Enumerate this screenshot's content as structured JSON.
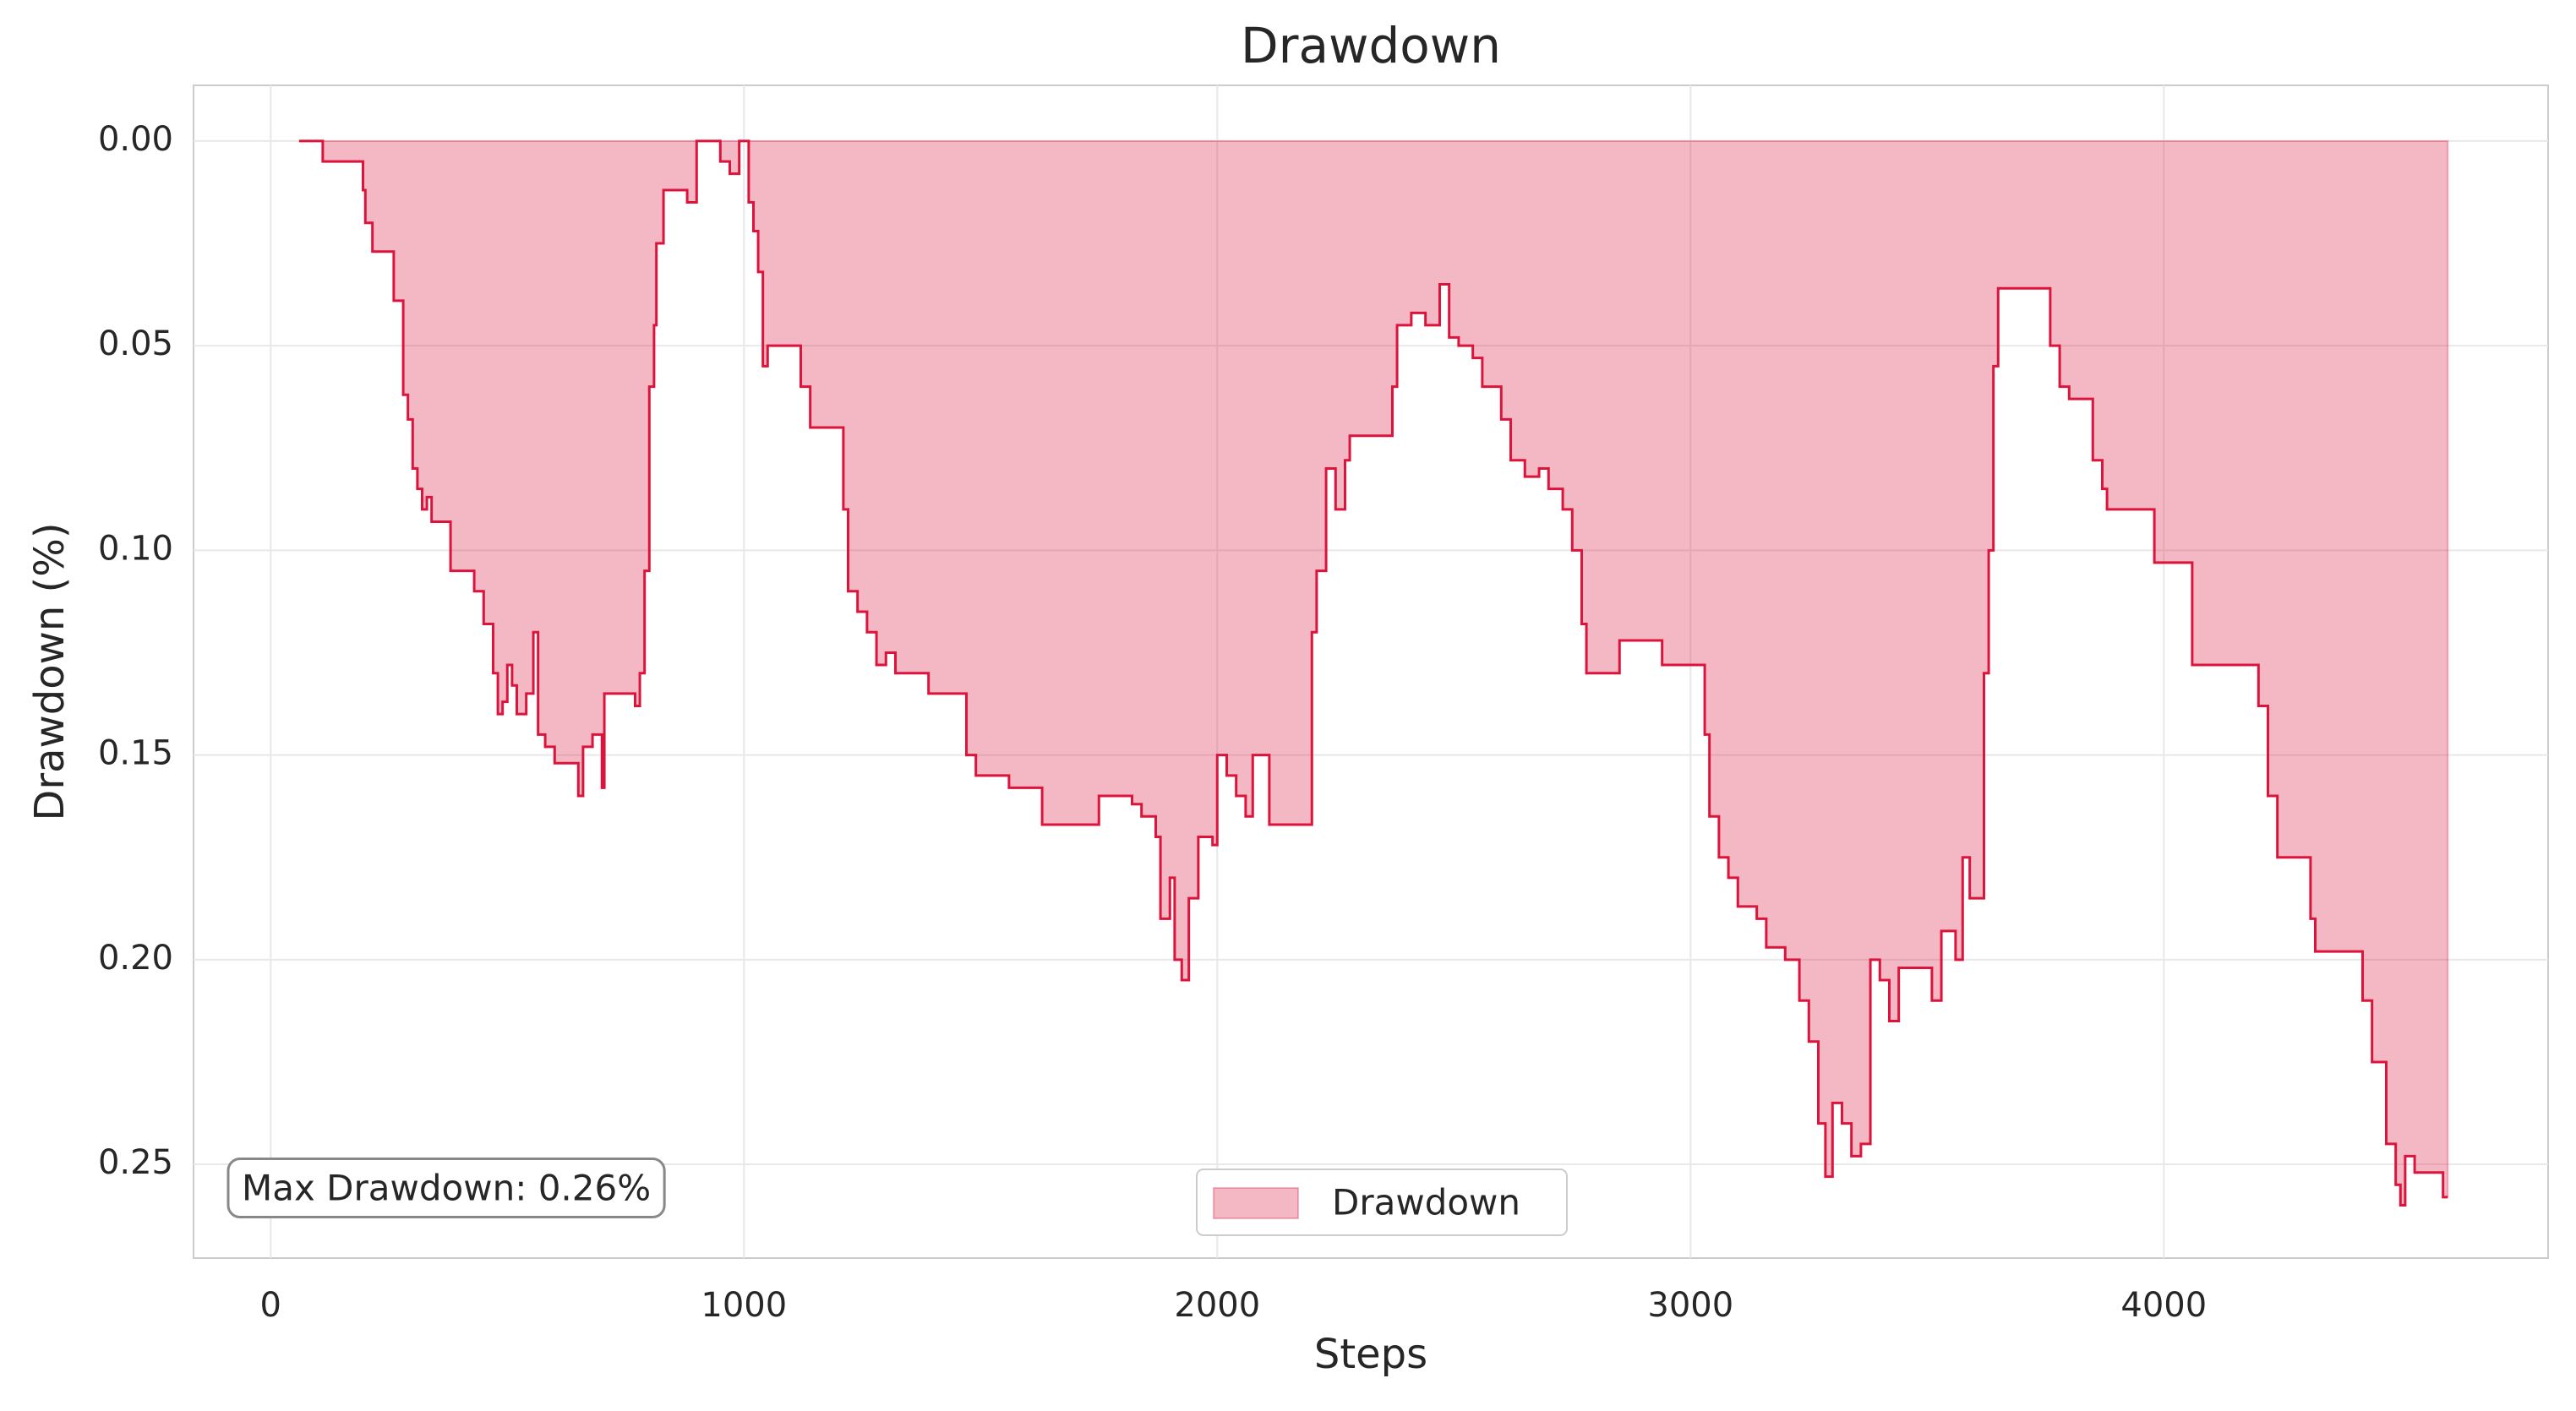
{
  "chart_data": {
    "type": "area",
    "title": "Drawdown",
    "xlabel": "Steps",
    "ylabel": "Drawdown (%)",
    "annotation": "Max Drawdown: 0.26%",
    "invert_y": true,
    "grid": true,
    "legend": "lower center",
    "step": true,
    "series": [
      {
        "name": "Drawdown",
        "color": "#dc143c",
        "x": [
          60,
          100,
          110,
          185,
          195,
          200,
          215,
          250,
          260,
          275,
          280,
          290,
          300,
          310,
          320,
          330,
          340,
          370,
          380,
          420,
          430,
          450,
          470,
          480,
          490,
          500,
          510,
          520,
          540,
          555,
          565,
          580,
          600,
          640,
          650,
          660,
          680,
          700,
          705,
          750,
          770,
          780,
          790,
          800,
          810,
          815,
          830,
          870,
          880,
          900,
          940,
          950,
          970,
          990,
          1000,
          1010,
          1020,
          1030,
          1040,
          1050,
          1100,
          1120,
          1140,
          1200,
          1210,
          1220,
          1240,
          1260,
          1280,
          1300,
          1320,
          1380,
          1390,
          1450,
          1470,
          1490,
          1530,
          1560,
          1620,
          1630,
          1740,
          1750,
          1820,
          1840,
          1870,
          1880,
          1900,
          1910,
          1925,
          1940,
          1960,
          1990,
          2000,
          2020,
          2040,
          2060,
          2075,
          2100,
          2110,
          2190,
          2200,
          2210,
          2230,
          2250,
          2270,
          2280,
          2350,
          2370,
          2380,
          2410,
          2440,
          2470,
          2490,
          2510,
          2540,
          2560,
          2600,
          2620,
          2650,
          2680,
          2700,
          2730,
          2750,
          2770,
          2780,
          2830,
          2850,
          2940,
          3020,
          3030,
          3040,
          3060,
          3080,
          3100,
          3140,
          3160,
          3200,
          3230,
          3250,
          3270,
          3285,
          3300,
          3320,
          3340,
          3360,
          3380,
          3400,
          3420,
          3440,
          3490,
          3510,
          3530,
          3560,
          3575,
          3590,
          3620,
          3630,
          3640,
          3650,
          3740,
          3760,
          3780,
          3800,
          3840,
          3850,
          3870,
          3880,
          3970,
          3980,
          4050,
          4060,
          4180,
          4200,
          4220,
          4240,
          4300,
          4310,
          4320,
          4400,
          4420,
          4440,
          4460,
          4470,
          4490,
          4500,
          4510,
          4530,
          4580,
          4590,
          4600
        ],
        "values": [
          0,
          0,
          0.005,
          0.005,
          0.012,
          0.02,
          0.027,
          0.027,
          0.039,
          0.039,
          0.062,
          0.068,
          0.08,
          0.085,
          0.09,
          0.087,
          0.093,
          0.093,
          0.105,
          0.105,
          0.11,
          0.118,
          0.13,
          0.14,
          0.137,
          0.128,
          0.133,
          0.14,
          0.135,
          0.12,
          0.145,
          0.148,
          0.152,
          0.152,
          0.16,
          0.148,
          0.145,
          0.158,
          0.135,
          0.135,
          0.138,
          0.13,
          0.105,
          0.06,
          0.045,
          0.025,
          0.012,
          0.012,
          0.015,
          0,
          0,
          0.005,
          0.008,
          0,
          0,
          0.015,
          0.022,
          0.032,
          0.055,
          0.05,
          0.05,
          0.06,
          0.07,
          0.07,
          0.09,
          0.11,
          0.115,
          0.12,
          0.128,
          0.125,
          0.13,
          0.13,
          0.135,
          0.135,
          0.15,
          0.155,
          0.155,
          0.158,
          0.158,
          0.167,
          0.167,
          0.16,
          0.162,
          0.165,
          0.17,
          0.19,
          0.18,
          0.2,
          0.205,
          0.185,
          0.17,
          0.172,
          0.15,
          0.155,
          0.16,
          0.165,
          0.15,
          0.15,
          0.167,
          0.167,
          0.12,
          0.105,
          0.08,
          0.09,
          0.078,
          0.072,
          0.072,
          0.06,
          0.045,
          0.042,
          0.045,
          0.035,
          0.048,
          0.05,
          0.053,
          0.06,
          0.068,
          0.078,
          0.082,
          0.08,
          0.085,
          0.09,
          0.1,
          0.118,
          0.13,
          0.13,
          0.122,
          0.128,
          0.128,
          0.145,
          0.165,
          0.175,
          0.18,
          0.187,
          0.19,
          0.197,
          0.2,
          0.21,
          0.22,
          0.24,
          0.253,
          0.235,
          0.24,
          0.248,
          0.245,
          0.2,
          0.205,
          0.215,
          0.202,
          0.202,
          0.21,
          0.193,
          0.2,
          0.175,
          0.185,
          0.13,
          0.1,
          0.055,
          0.036,
          0.036,
          0.05,
          0.06,
          0.063,
          0.063,
          0.078,
          0.085,
          0.09,
          0.09,
          0.103,
          0.103,
          0.128,
          0.128,
          0.138,
          0.16,
          0.175,
          0.175,
          0.19,
          0.198,
          0.198,
          0.21,
          0.225,
          0.225,
          0.245,
          0.255,
          0.26,
          0.248,
          0.252,
          0.252,
          0.258,
          0.258
        ]
      }
    ],
    "xlim": [
      -163,
      4812
    ],
    "xticks": [
      0,
      1000,
      2000,
      3000,
      4000
    ],
    "ylim": [
      -0.0136,
      0.2729
    ],
    "yticks": [
      {
        "value": 0,
        "label": "0.00"
      },
      {
        "value": 0.05,
        "label": "0.05"
      },
      {
        "value": 0.1,
        "label": "0.10"
      },
      {
        "value": 0.15,
        "label": "0.15"
      },
      {
        "value": 0.2,
        "label": "0.20"
      },
      {
        "value": 0.25,
        "label": "0.25"
      }
    ]
  }
}
